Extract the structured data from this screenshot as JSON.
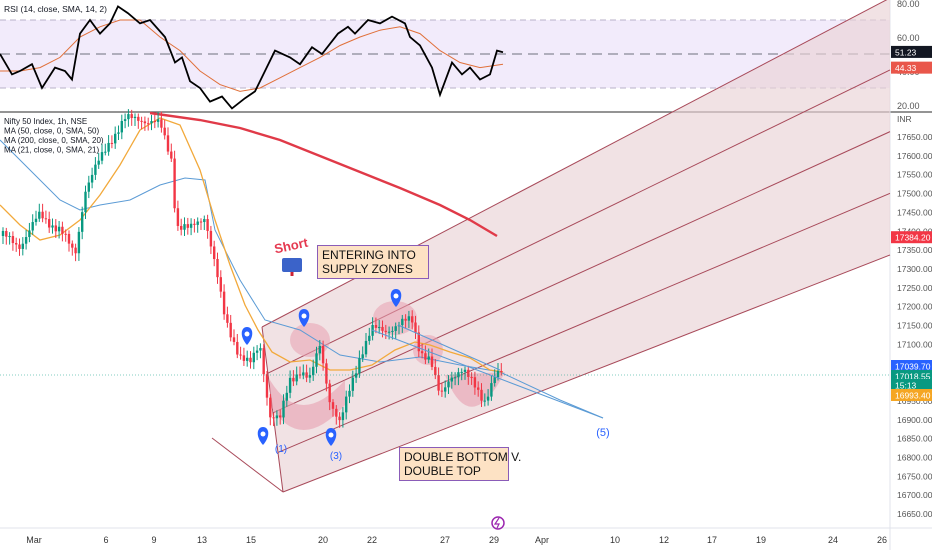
{
  "rsi_pane": {
    "legend": "RSI (14, close, SMA, 14, 2)",
    "axis_labels": [
      "80.00",
      "60.00",
      "40.00",
      "20.00"
    ],
    "value_tag": "51.23",
    "sma_tag": "44.33",
    "colors": {
      "rsi": "#000000",
      "sma": "#e0703a",
      "band": "#f2ebfb",
      "tag_rsi": "#131722",
      "tag_sma": "#e9564a"
    }
  },
  "price_pane": {
    "legend": [
      {
        "text": "Nifty 50 Index, 1h, NSE",
        "bind": "price_pane.legend.0.text"
      },
      {
        "text": "MA (50, close, 0, SMA, 50)"
      },
      {
        "text": "MA (200, close, 0, SMA, 20)"
      },
      {
        "text": "MA (21, close, 0, SMA, 21)"
      }
    ],
    "currency": "INR",
    "price_tags": [
      {
        "value": "17384.20",
        "color": "#f23645"
      },
      {
        "value": "17039.70",
        "color": "#2962ff"
      },
      {
        "value": "17018.55",
        "color": "#089981"
      },
      {
        "value": "15:13",
        "color": "#089981"
      },
      {
        "value": "16993.40",
        "color": "#f5a623"
      }
    ],
    "colors": {
      "up": "#089981",
      "down": "#f23645",
      "ma_red": "#e03a48",
      "ma_blue": "#5b9bd5",
      "ma_orange": "#f2a93b",
      "channel": "#a84a5a",
      "channel_fill": "#ead2d6"
    }
  },
  "annotations": {
    "supply_zone_1": "ENTERING INTO",
    "supply_zone_2": "SUPPLY ZONES",
    "double_1": "DOUBLE BOTTOM V.",
    "double_2": "DOUBLE TOP",
    "wave_1": "(1)",
    "wave_3": "(3)",
    "wave_5": "(5)",
    "short_sticker": "Short"
  },
  "chart_data": {
    "type": "candlestick",
    "title": "Nifty 50 Index, 1h, NSE",
    "y_ticks": [
      17650,
      17600,
      17550,
      17500,
      17450,
      17400,
      17350,
      17300,
      17250,
      17200,
      17150,
      17100,
      17050,
      17000,
      16950,
      16900,
      16850,
      16800,
      16750,
      16700,
      16650
    ],
    "ylim": [
      16620,
      17700
    ],
    "x_ticks": [
      "Mar",
      "6",
      "9",
      "13",
      "15",
      "20",
      "22",
      "27",
      "29",
      "Apr",
      "10",
      "12",
      "17",
      "19",
      "24",
      "26"
    ],
    "rsi_ticks": [
      80,
      60,
      40,
      20
    ],
    "rsi_ylim": [
      17,
      80
    ],
    "last": {
      "close": 17018.55,
      "ma_red": 17384.2,
      "ma_blue": 17039.7,
      "ma_orange": 16993.4,
      "rsi": 51.23,
      "rsi_sma": 44.33
    }
  }
}
